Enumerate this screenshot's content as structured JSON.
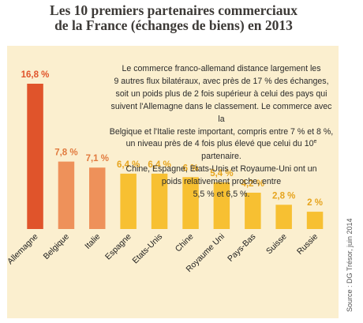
{
  "chart_data": {
    "type": "bar",
    "title": [
      "Les 10 premiers partenaires commerciaux",
      "de la France (échanges de biens) en 2013"
    ],
    "categories": [
      "Allemagne",
      "Belgique",
      "Italie",
      "Espagne",
      "Etats-Unis",
      "Chine",
      "Royaume Uni",
      "Pays-Bas",
      "Suisse",
      "Russie"
    ],
    "values": [
      16.8,
      7.8,
      7.1,
      6.4,
      6.4,
      6.0,
      5.4,
      4.2,
      2.8,
      2.0
    ],
    "value_labels": [
      "16,8 %",
      "7,8 %",
      "7,1 %",
      "6,4 %",
      "6,4 %",
      "6 %",
      "5,4 %",
      "4,2 %",
      "2,8 %",
      "2 %"
    ],
    "unit": "%",
    "ylim": [
      0,
      16.8
    ],
    "grid": false,
    "annotation": {
      "lines": [
        "Le commerce franco-allemand distance largement les",
        "9 autres flux bilatéraux, avec près de 17 % des échanges,",
        "soit un poids plus de 2 fois supérieur à celui des pays qui",
        "suivent l'Allemagne dans le classement. Le commerce avec la",
        "Belgique et l'Italie reste important, compris entre 7 % et 8 %,",
        "un niveau près de 4 fois plus élevé que celui du 10",
        "Chine, Espagne, Etats-Unis et Royaume-Uni ont un",
        "poids relativement proche, entre",
        "5,5 % et 6,5 %."
      ],
      "line6_superscript": "e",
      "line6_suffix": " partenaire."
    },
    "source": "Source : DG Trésor, juin 2014"
  },
  "colors": {
    "panel": "#fbefcf",
    "title": "#3d3a37",
    "bar_colors": [
      "#e0542b",
      "#ee915a",
      "#ee915a",
      "#f7c032",
      "#f7c032",
      "#f7c032",
      "#f7c032",
      "#f7c032",
      "#f7c032",
      "#f7c032"
    ],
    "label_colors": [
      "#e0542b",
      "#e17a3e",
      "#e17a3e",
      "#e6a41d",
      "#e6a41d",
      "#e6a41d",
      "#e6a41d",
      "#e6a41d",
      "#e6a41d",
      "#e6a41d"
    ]
  }
}
